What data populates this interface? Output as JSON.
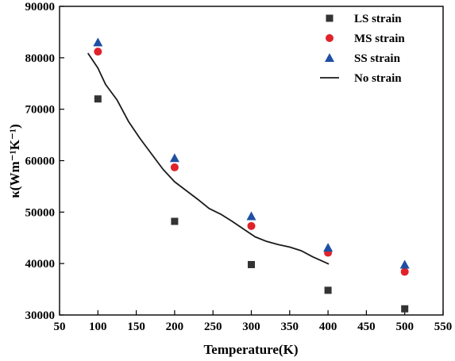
{
  "chart_data": {
    "type": "scatter",
    "xlabel": "Temperature(K)",
    "ylabel": "κ(Wm⁻¹K⁻¹)",
    "xlim": [
      50,
      550
    ],
    "ylim": [
      30000,
      90000
    ],
    "xticks": [
      50,
      100,
      150,
      200,
      250,
      300,
      350,
      400,
      450,
      500,
      550
    ],
    "yticks": [
      30000,
      40000,
      50000,
      60000,
      70000,
      80000,
      90000
    ],
    "legend_position": "top-right",
    "grid": false,
    "series": [
      {
        "name": "LS strain",
        "marker": "square",
        "color": "#333333",
        "x": [
          100,
          200,
          300,
          400,
          500
        ],
        "y": [
          72000,
          48200,
          39800,
          34800,
          31200
        ]
      },
      {
        "name": "MS strain",
        "marker": "circle",
        "color": "#e0222a",
        "x": [
          100,
          200,
          300,
          400,
          500
        ],
        "y": [
          81200,
          58700,
          47300,
          42100,
          38400
        ]
      },
      {
        "name": "SS strain",
        "marker": "triangle",
        "color": "#1f4fa3",
        "x": [
          100,
          200,
          300,
          400,
          500
        ],
        "y": [
          83000,
          60500,
          49200,
          43100,
          39800
        ]
      },
      {
        "name": "No strain",
        "marker": "line",
        "color": "#1a1a1a",
        "x": [
          87,
          100,
          110,
          125,
          140,
          155,
          170,
          185,
          200,
          215,
          230,
          245,
          260,
          275,
          290,
          305,
          320,
          335,
          350,
          365,
          380,
          395,
          401
        ],
        "y": [
          80900,
          78000,
          74800,
          71800,
          67600,
          64300,
          61300,
          58300,
          55900,
          54200,
          52500,
          50700,
          49600,
          48200,
          46700,
          45200,
          44300,
          43700,
          43200,
          42500,
          41300,
          40300,
          39900
        ]
      }
    ]
  }
}
